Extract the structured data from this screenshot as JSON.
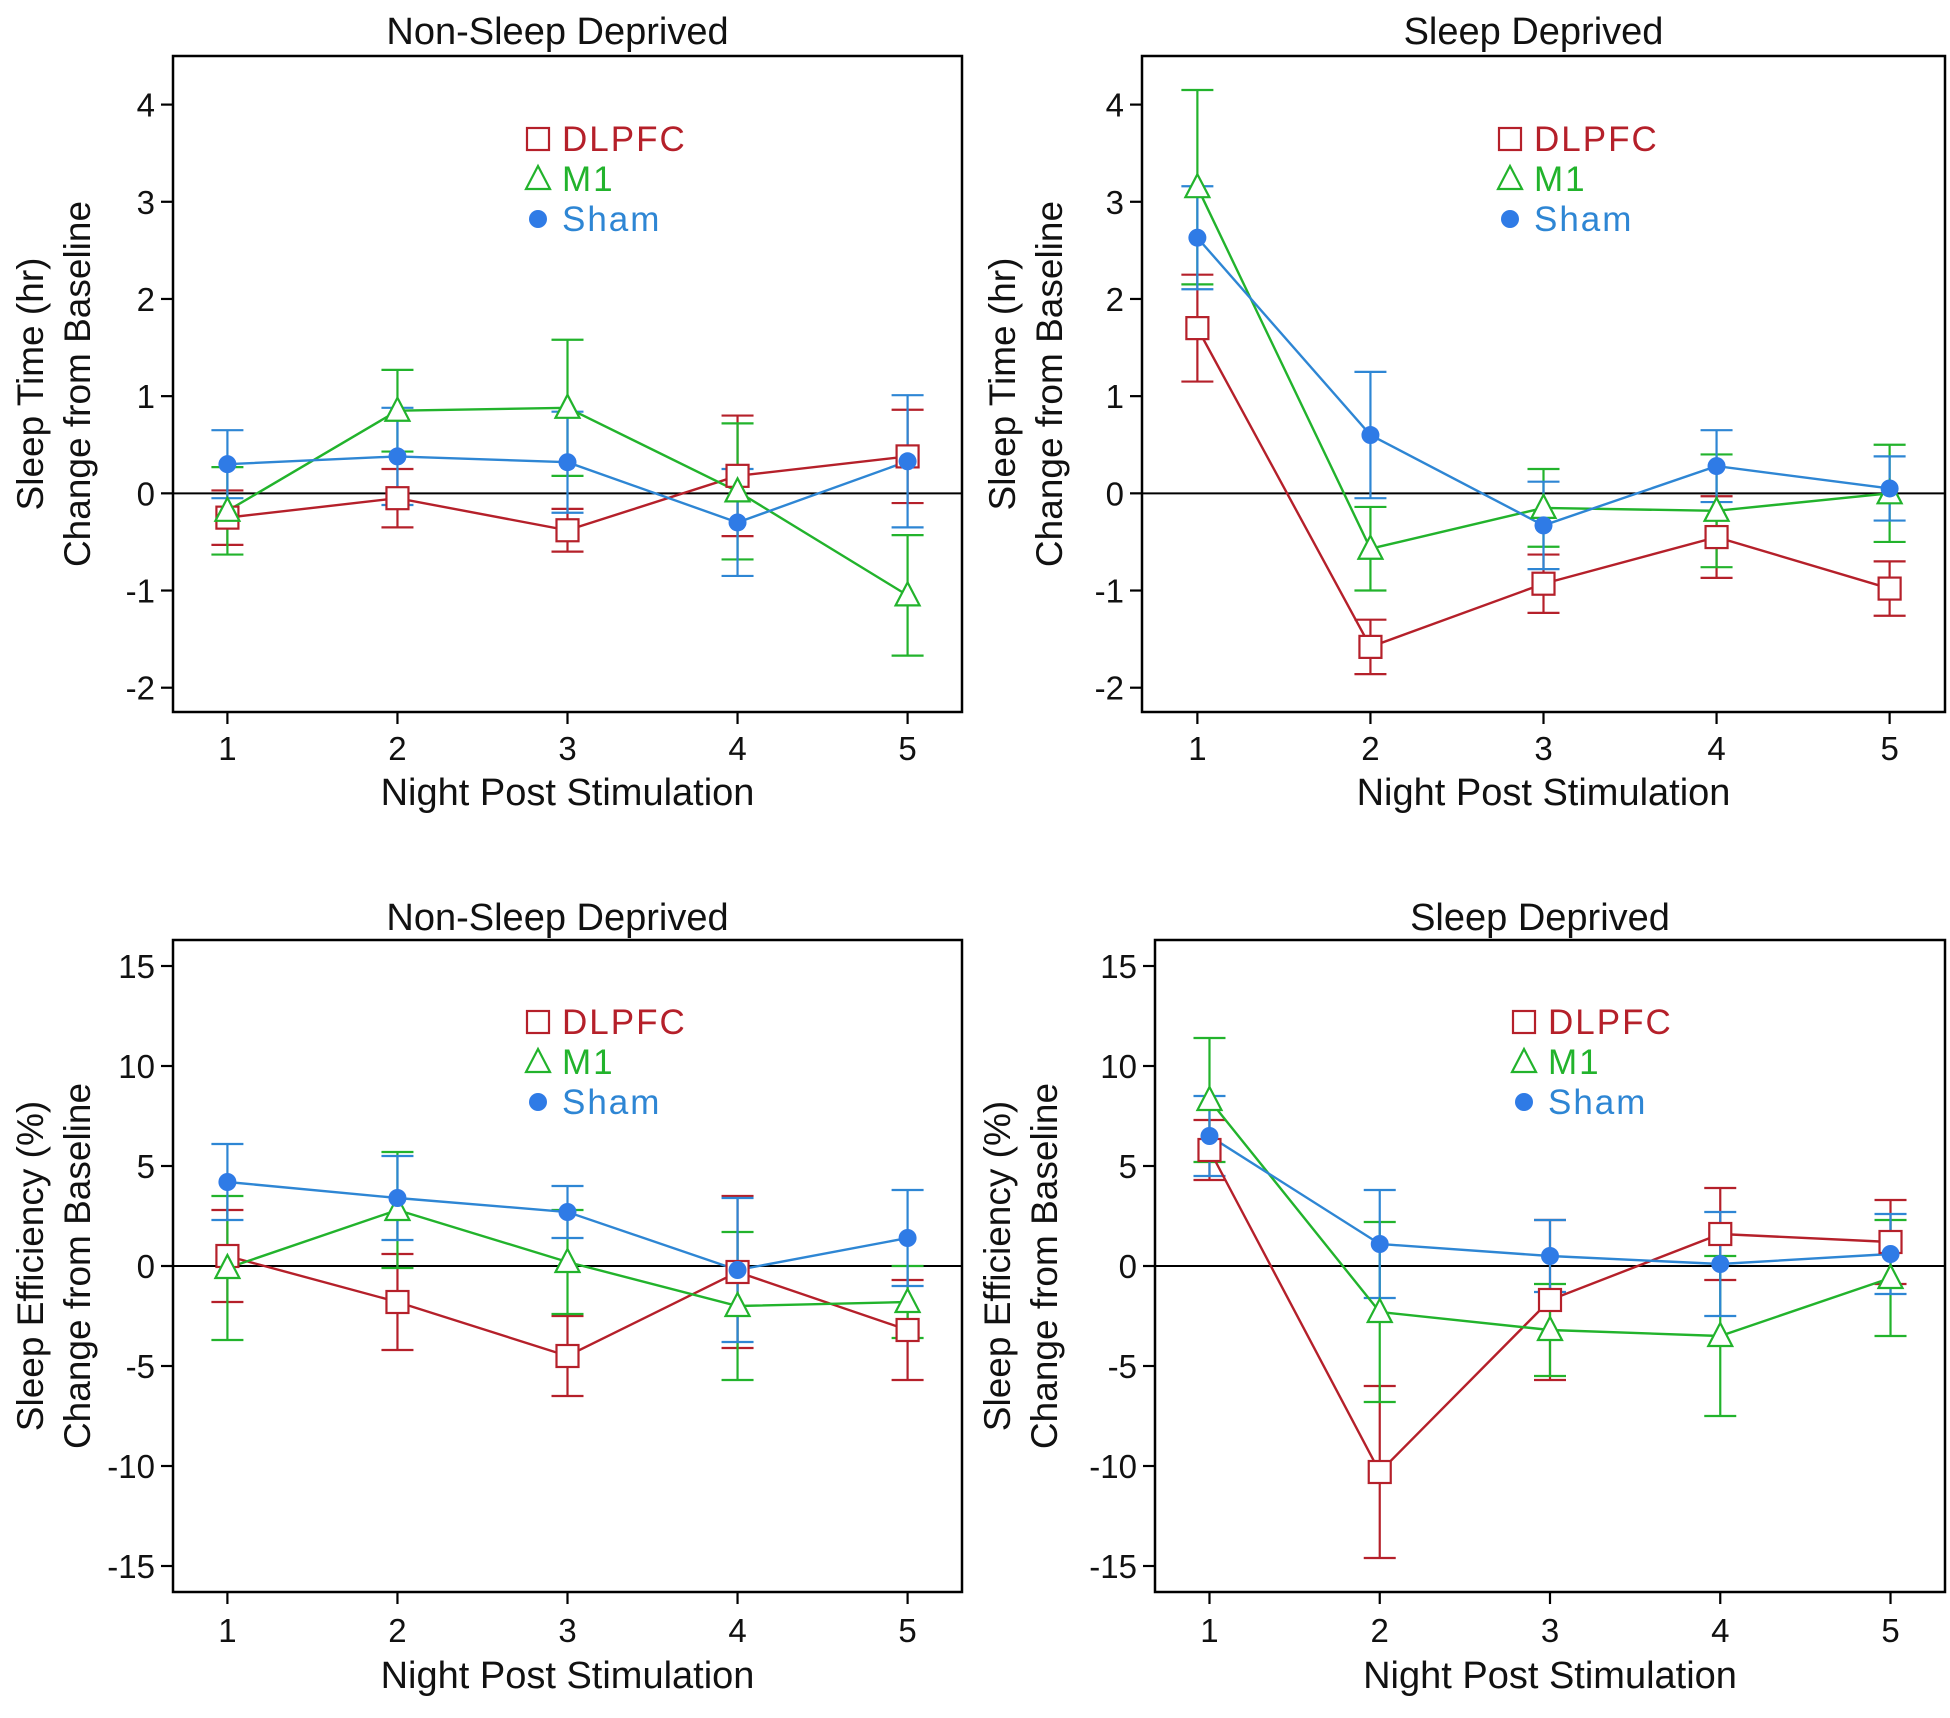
{
  "colors": {
    "dlpfc": "#b5202a",
    "m1": "#22b32c",
    "sham_line": "#2e86d4",
    "sham_marker": "#2f7be6",
    "axis": "#000000"
  },
  "chart_data": [
    {
      "type": "line",
      "title": "Non-Sleep Deprived",
      "xlabel": "Night Post Stimulation",
      "ylabel": [
        "Sleep Time (hr)",
        "Change from Baseline"
      ],
      "x": [
        1,
        2,
        3,
        4,
        5
      ],
      "x_tick_labels": [
        "1",
        "2",
        "3",
        "4",
        "5"
      ],
      "xlim": [
        0.68,
        5.32
      ],
      "ylim": [
        -2.25,
        4.5
      ],
      "y_ticks": [
        4,
        3,
        2,
        1,
        0,
        -1,
        -2
      ],
      "y_tick_labels": [
        "4",
        "3",
        "2",
        "1",
        "0",
        "-1",
        "-2"
      ],
      "reference_line": 0,
      "legend": {
        "position": "top-center",
        "entries": [
          "DLPFC",
          "M1",
          "Sham"
        ]
      },
      "series": [
        {
          "name": "DLPFC",
          "marker": "open-square",
          "values": [
            -0.25,
            -0.05,
            -0.38,
            0.18,
            0.38
          ],
          "errors": [
            0.28,
            0.3,
            0.22,
            0.62,
            0.48
          ]
        },
        {
          "name": "M1",
          "marker": "open-triangle",
          "values": [
            -0.18,
            0.85,
            0.88,
            0.02,
            -1.05
          ],
          "errors": [
            0.45,
            0.42,
            0.7,
            0.7,
            0.62
          ]
        },
        {
          "name": "Sham",
          "marker": "filled-circle",
          "values": [
            0.3,
            0.38,
            0.32,
            -0.3,
            0.33
          ],
          "errors": [
            0.35,
            0.5,
            0.52,
            0.55,
            0.68
          ]
        }
      ]
    },
    {
      "type": "line",
      "title": "Sleep Deprived",
      "xlabel": "Night Post Stimulation",
      "ylabel": [
        "Sleep Time (hr)",
        "Change from Baseline"
      ],
      "x": [
        1,
        2,
        3,
        4,
        5
      ],
      "x_tick_labels": [
        "1",
        "2",
        "3",
        "4",
        "5"
      ],
      "xlim": [
        0.68,
        5.32
      ],
      "ylim": [
        -2.25,
        4.5
      ],
      "y_ticks": [
        4,
        3,
        2,
        1,
        0,
        -1,
        -2
      ],
      "y_tick_labels": [
        "4",
        "3",
        "2",
        "1",
        "0",
        "-1",
        "-2"
      ],
      "reference_line": 0,
      "legend": {
        "position": "top-center",
        "entries": [
          "DLPFC",
          "M1",
          "Sham"
        ]
      },
      "series": [
        {
          "name": "DLPFC",
          "marker": "open-square",
          "values": [
            1.7,
            -1.58,
            -0.93,
            -0.45,
            -0.98
          ],
          "errors": [
            0.55,
            0.28,
            0.3,
            0.42,
            0.28
          ]
        },
        {
          "name": "M1",
          "marker": "open-triangle",
          "values": [
            3.15,
            -0.57,
            -0.15,
            -0.18,
            0.0
          ],
          "errors": [
            1.0,
            0.43,
            0.4,
            0.58,
            0.5
          ]
        },
        {
          "name": "Sham",
          "marker": "filled-circle",
          "values": [
            2.63,
            0.6,
            -0.33,
            0.28,
            0.05
          ],
          "errors": [
            0.53,
            0.65,
            0.45,
            0.37,
            0.33
          ]
        }
      ]
    },
    {
      "type": "line",
      "title": "Non-Sleep Deprived",
      "xlabel": "Night Post Stimulation",
      "ylabel": [
        "Sleep Efficiency (%)",
        "Change from Baseline"
      ],
      "x": [
        1,
        2,
        3,
        4,
        5
      ],
      "x_tick_labels": [
        "1",
        "2",
        "3",
        "4",
        "5"
      ],
      "xlim": [
        0.68,
        5.32
      ],
      "ylim": [
        -16.3,
        16.3
      ],
      "y_ticks": [
        15,
        10,
        5,
        0,
        -5,
        -10,
        -15
      ],
      "y_tick_labels": [
        "15",
        "10",
        "5",
        "0",
        "-5",
        "-10",
        "-15"
      ],
      "reference_line": 0,
      "legend": {
        "position": "top-center",
        "entries": [
          "DLPFC",
          "M1",
          "Sham"
        ]
      },
      "series": [
        {
          "name": "DLPFC",
          "marker": "open-square",
          "values": [
            0.5,
            -1.8,
            -4.5,
            -0.3,
            -3.2
          ],
          "errors": [
            2.3,
            2.4,
            2.0,
            3.8,
            2.5
          ]
        },
        {
          "name": "M1",
          "marker": "open-triangle",
          "values": [
            -0.1,
            2.8,
            0.2,
            -2.0,
            -1.8
          ],
          "errors": [
            3.6,
            2.9,
            2.6,
            3.7,
            1.8
          ]
        },
        {
          "name": "Sham",
          "marker": "filled-circle",
          "values": [
            4.2,
            3.4,
            2.7,
            -0.2,
            1.4
          ],
          "errors": [
            1.9,
            2.1,
            1.3,
            3.6,
            2.4
          ]
        }
      ]
    },
    {
      "type": "line",
      "title": "Sleep Deprived",
      "xlabel": "Night Post Stimulation",
      "ylabel": [
        "Sleep Efficiency (%)",
        "Change from Baseline"
      ],
      "x": [
        1,
        2,
        3,
        4,
        5
      ],
      "x_tick_labels": [
        "1",
        "2",
        "3",
        "4",
        "5"
      ],
      "xlim": [
        0.68,
        5.32
      ],
      "ylim": [
        -16.3,
        16.3
      ],
      "y_ticks": [
        15,
        10,
        5,
        0,
        -5,
        -10,
        -15
      ],
      "y_tick_labels": [
        "15",
        "10",
        "5",
        "0",
        "-5",
        "-10",
        "-15"
      ],
      "reference_line": 0,
      "legend": {
        "position": "top-center",
        "entries": [
          "DLPFC",
          "M1",
          "Sham"
        ]
      },
      "series": [
        {
          "name": "DLPFC",
          "marker": "open-square",
          "values": [
            5.8,
            -10.3,
            -1.7,
            1.6,
            1.2
          ],
          "errors": [
            1.5,
            4.3,
            4.0,
            2.3,
            2.1
          ]
        },
        {
          "name": "M1",
          "marker": "open-triangle",
          "values": [
            8.3,
            -2.3,
            -3.2,
            -3.5,
            -0.6
          ],
          "errors": [
            3.1,
            4.5,
            2.3,
            4.0,
            2.9
          ]
        },
        {
          "name": "Sham",
          "marker": "filled-circle",
          "values": [
            6.5,
            1.1,
            0.5,
            0.1,
            0.6
          ],
          "errors": [
            2.0,
            2.7,
            1.8,
            2.6,
            2.0
          ]
        }
      ]
    }
  ]
}
